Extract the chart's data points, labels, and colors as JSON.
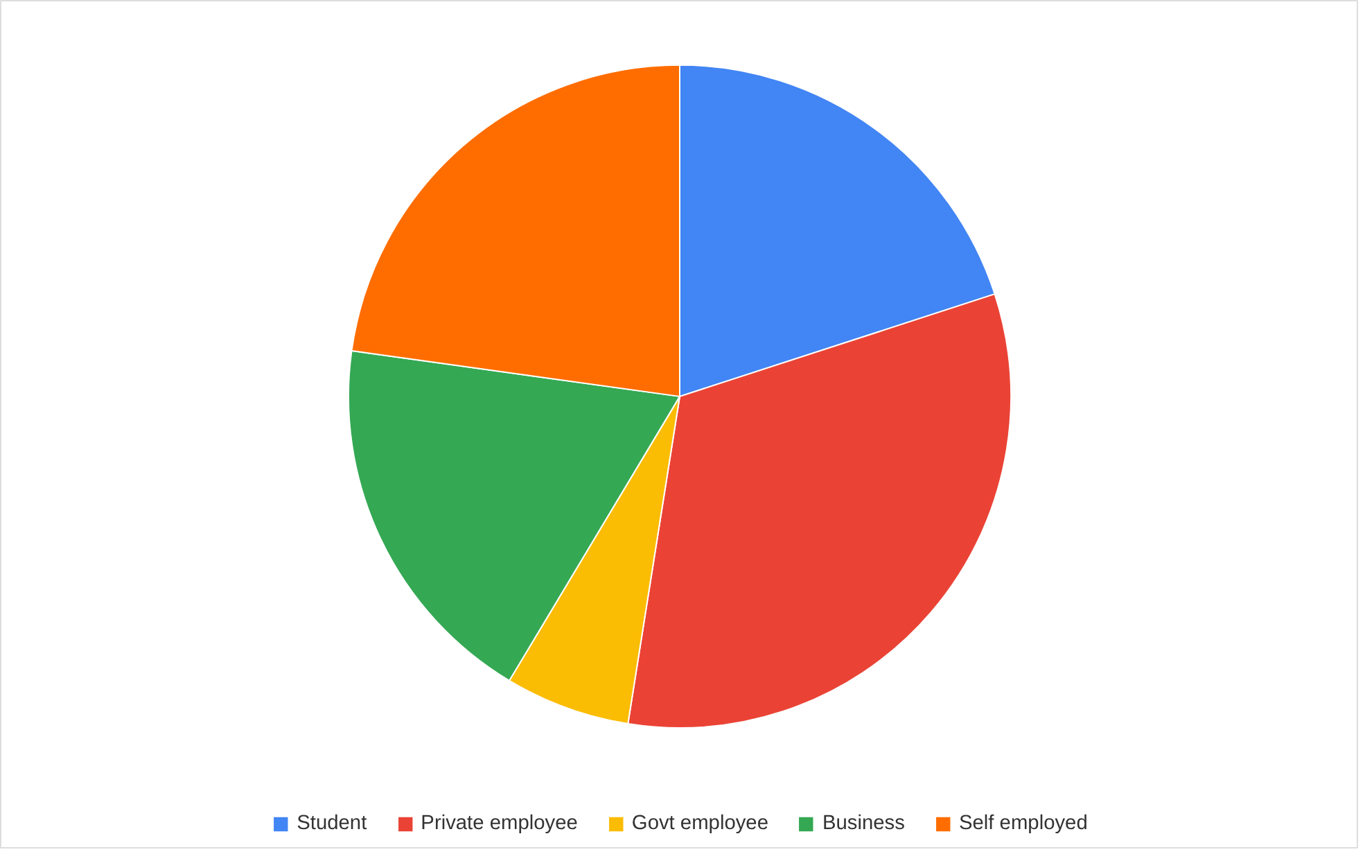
{
  "chart_data": {
    "type": "pie",
    "categories": [
      "Student",
      "Private employee",
      "Govt employee",
      "Business",
      "Self employed"
    ],
    "values": [
      20,
      32.5,
      6.1,
      18.6,
      22.8
    ],
    "colors": [
      "#4285f4",
      "#ea4335",
      "#fbbc04",
      "#34a853",
      "#ff6d01"
    ],
    "legend": "bottom"
  }
}
